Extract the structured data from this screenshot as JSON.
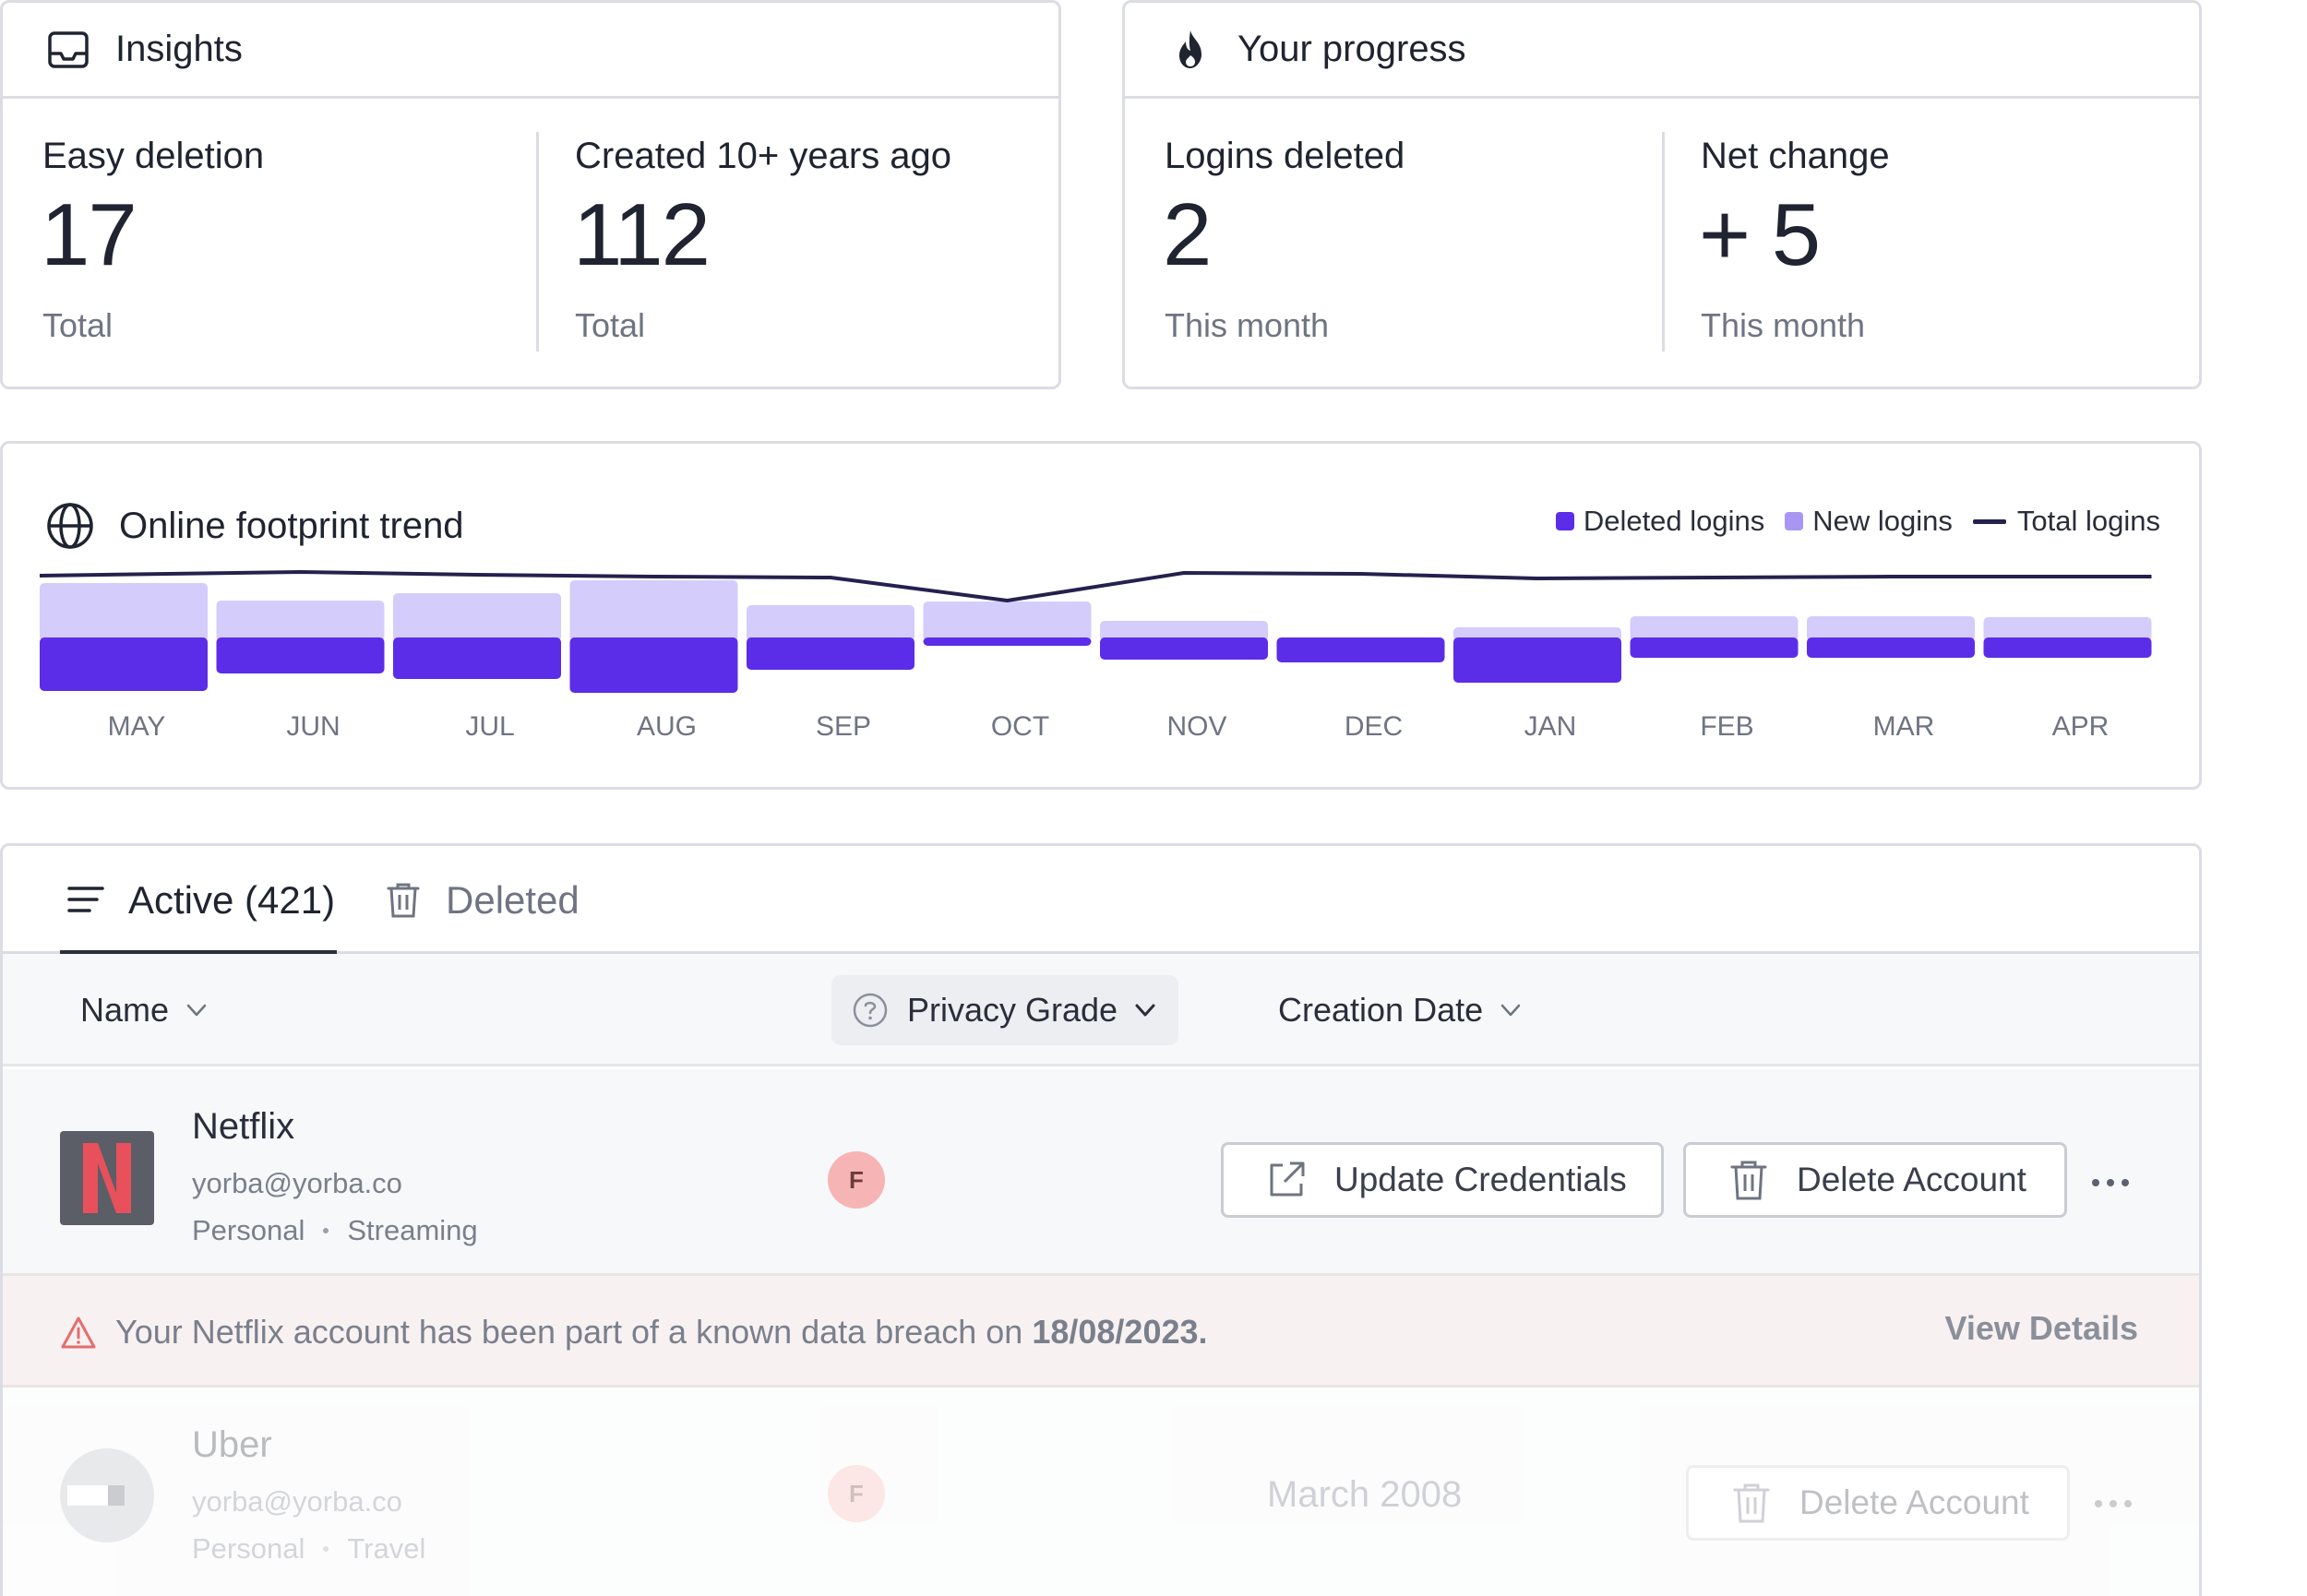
{
  "insights": {
    "title": "Insights",
    "easy_deletion": {
      "label": "Easy deletion",
      "value": "17",
      "sub": "Total"
    },
    "created_old": {
      "label": "Created 10+ years ago",
      "value": "112",
      "sub": "Total"
    }
  },
  "progress": {
    "title": "Your progress",
    "logins_deleted": {
      "label": "Logins deleted",
      "value": "2",
      "sub": "This month"
    },
    "net_change": {
      "label": "Net change",
      "value": "+ 5",
      "sub": "This month"
    }
  },
  "trend": {
    "title": "Online footprint trend",
    "legend": {
      "deleted": "Deleted logins",
      "new": "New logins",
      "total": "Total logins"
    },
    "colors": {
      "deleted": "#5b2de8",
      "new": "#d4ccfb",
      "total": "#25214d"
    }
  },
  "chart_data": {
    "type": "bar",
    "categories": [
      "MAY",
      "JUN",
      "JUL",
      "AUG",
      "SEP",
      "OCT",
      "NOV",
      "DEC",
      "JAN",
      "FEB",
      "MAR",
      "APR"
    ],
    "series": [
      {
        "name": "Deleted logins",
        "values": [
          58,
          39,
          45,
          60,
          35,
          9,
          24,
          27,
          49,
          22,
          22,
          22
        ]
      },
      {
        "name": "New logins",
        "values": [
          59,
          40,
          48,
          62,
          35,
          39,
          18,
          0,
          11,
          23,
          23,
          22
        ]
      },
      {
        "name": "Total logins",
        "values": [
          47,
          51,
          48,
          46,
          45,
          20,
          50,
          49,
          44,
          45,
          46,
          46
        ]
      }
    ]
  },
  "tabs": {
    "active": "Active (421)",
    "deleted": "Deleted"
  },
  "columns": {
    "name": "Name",
    "privacy_grade": "Privacy Grade",
    "creation_date": "Creation Date"
  },
  "rows": [
    {
      "name": "Netflix",
      "email": "yorba@yorba.co",
      "tags": [
        "Personal",
        "Streaming"
      ],
      "grade": "F",
      "update_label": "Update Credentials",
      "delete_label": "Delete Account",
      "alert": {
        "text": "Your Netflix account has been part of a known data breach on",
        "date": "18/08/2023.",
        "action": "View Details"
      }
    },
    {
      "name": "Uber",
      "email": "yorba@yorba.co",
      "tags": [
        "Personal",
        "Travel"
      ],
      "grade": "F",
      "creation_date": "March 2008",
      "delete_label": "Delete Account"
    }
  ]
}
